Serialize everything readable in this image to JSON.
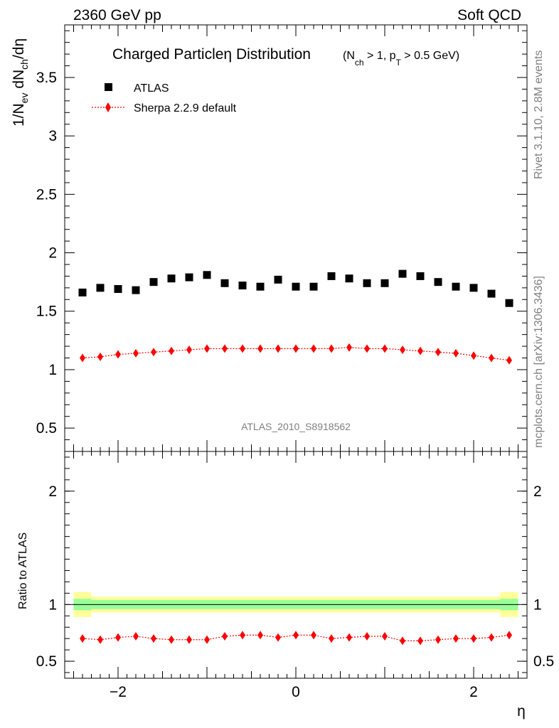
{
  "header": {
    "left": "2360 GeV pp",
    "right": "Soft QCD"
  },
  "side_labels": {
    "rivet": "Rivet 3.1.10,  2.8M events",
    "mcplots": "mcplots.cern.ch [arXiv:1306.3436]"
  },
  "chart_data": [
    {
      "type": "scatter",
      "panel": "main",
      "title": "Charged Particle η Distribution",
      "title_main": "Charged Particle",
      "title_eta": "η",
      "title_tail": " Distribution",
      "subtitle": "(N_ch > 1, p_T > 0.5 GeV)",
      "analysis_label": "ATLAS_2010_S8918562",
      "xlabel": "η",
      "ylabel": "1/N_ev dN_ch/dη",
      "xlim": [
        -2.6,
        2.6
      ],
      "ylim": [
        0.3,
        3.95
      ],
      "yticks": [
        0.5,
        1,
        1.5,
        2,
        2.5,
        3,
        3.5
      ],
      "ytick_labels": [
        "0.5",
        "1",
        "1.5",
        "2",
        "2.5",
        "3",
        "3.5"
      ],
      "legend": {
        "placement": "top-left",
        "entries": [
          "ATLAS",
          "Sherpa 2.2.9 default"
        ]
      },
      "x": [
        -2.4,
        -2.2,
        -2.0,
        -1.8,
        -1.6,
        -1.4,
        -1.2,
        -1.0,
        -0.8,
        -0.6,
        -0.4,
        -0.2,
        0.0,
        0.2,
        0.4,
        0.6,
        0.8,
        1.0,
        1.2,
        1.4,
        1.6,
        1.8,
        2.0,
        2.2,
        2.4
      ],
      "series": [
        {
          "name": "ATLAS",
          "color": "#000000",
          "marker": "square",
          "values": [
            1.66,
            1.7,
            1.69,
            1.68,
            1.75,
            1.78,
            1.79,
            1.81,
            1.74,
            1.72,
            1.71,
            1.77,
            1.71,
            1.71,
            1.8,
            1.78,
            1.74,
            1.74,
            1.82,
            1.8,
            1.75,
            1.71,
            1.7,
            1.65,
            1.57
          ]
        },
        {
          "name": "Sherpa 2.2.9 default",
          "color": "#ff0000",
          "marker": "diamond",
          "values": [
            1.1,
            1.11,
            1.13,
            1.14,
            1.15,
            1.16,
            1.17,
            1.18,
            1.18,
            1.18,
            1.18,
            1.18,
            1.18,
            1.18,
            1.18,
            1.19,
            1.18,
            1.18,
            1.17,
            1.16,
            1.15,
            1.14,
            1.12,
            1.1,
            1.08
          ]
        }
      ]
    },
    {
      "type": "scatter",
      "panel": "ratio",
      "xlabel": "η",
      "ylabel": "Ratio to ATLAS",
      "xlim": [
        -2.6,
        2.6
      ],
      "ylim": [
        0.35,
        2.35
      ],
      "yticks": [
        0.5,
        1,
        2
      ],
      "ytick_labels": [
        "0.5",
        "1",
        "2"
      ],
      "xticks": [
        -2,
        0,
        2
      ],
      "xtick_labels": [
        "−2",
        "0",
        "2"
      ],
      "reference": 1.0,
      "x": [
        -2.4,
        -2.2,
        -2.0,
        -1.8,
        -1.6,
        -1.4,
        -1.2,
        -1.0,
        -0.8,
        -0.6,
        -0.4,
        -0.2,
        0.0,
        0.2,
        0.4,
        0.6,
        0.8,
        1.0,
        1.2,
        1.4,
        1.6,
        1.8,
        2.0,
        2.2,
        2.4
      ],
      "band_stat": [
        0.05,
        0.04,
        0.04,
        0.04,
        0.04,
        0.04,
        0.04,
        0.04,
        0.04,
        0.04,
        0.04,
        0.04,
        0.04,
        0.04,
        0.04,
        0.04,
        0.04,
        0.04,
        0.04,
        0.04,
        0.04,
        0.04,
        0.04,
        0.04,
        0.05
      ],
      "band_total": [
        0.11,
        0.07,
        0.07,
        0.07,
        0.07,
        0.07,
        0.07,
        0.07,
        0.07,
        0.07,
        0.07,
        0.07,
        0.07,
        0.07,
        0.07,
        0.07,
        0.07,
        0.07,
        0.07,
        0.07,
        0.07,
        0.07,
        0.07,
        0.07,
        0.11
      ],
      "colors": {
        "stat": "#99ff99",
        "total": "#ffff99",
        "line": "#000000",
        "mc": "#ff0000"
      },
      "series": [
        {
          "name": "Sherpa 2.2.9 default",
          "values": [
            0.7,
            0.69,
            0.71,
            0.72,
            0.7,
            0.69,
            0.69,
            0.69,
            0.72,
            0.73,
            0.73,
            0.71,
            0.73,
            0.73,
            0.7,
            0.71,
            0.72,
            0.72,
            0.68,
            0.68,
            0.69,
            0.7,
            0.7,
            0.71,
            0.73
          ]
        }
      ]
    }
  ]
}
